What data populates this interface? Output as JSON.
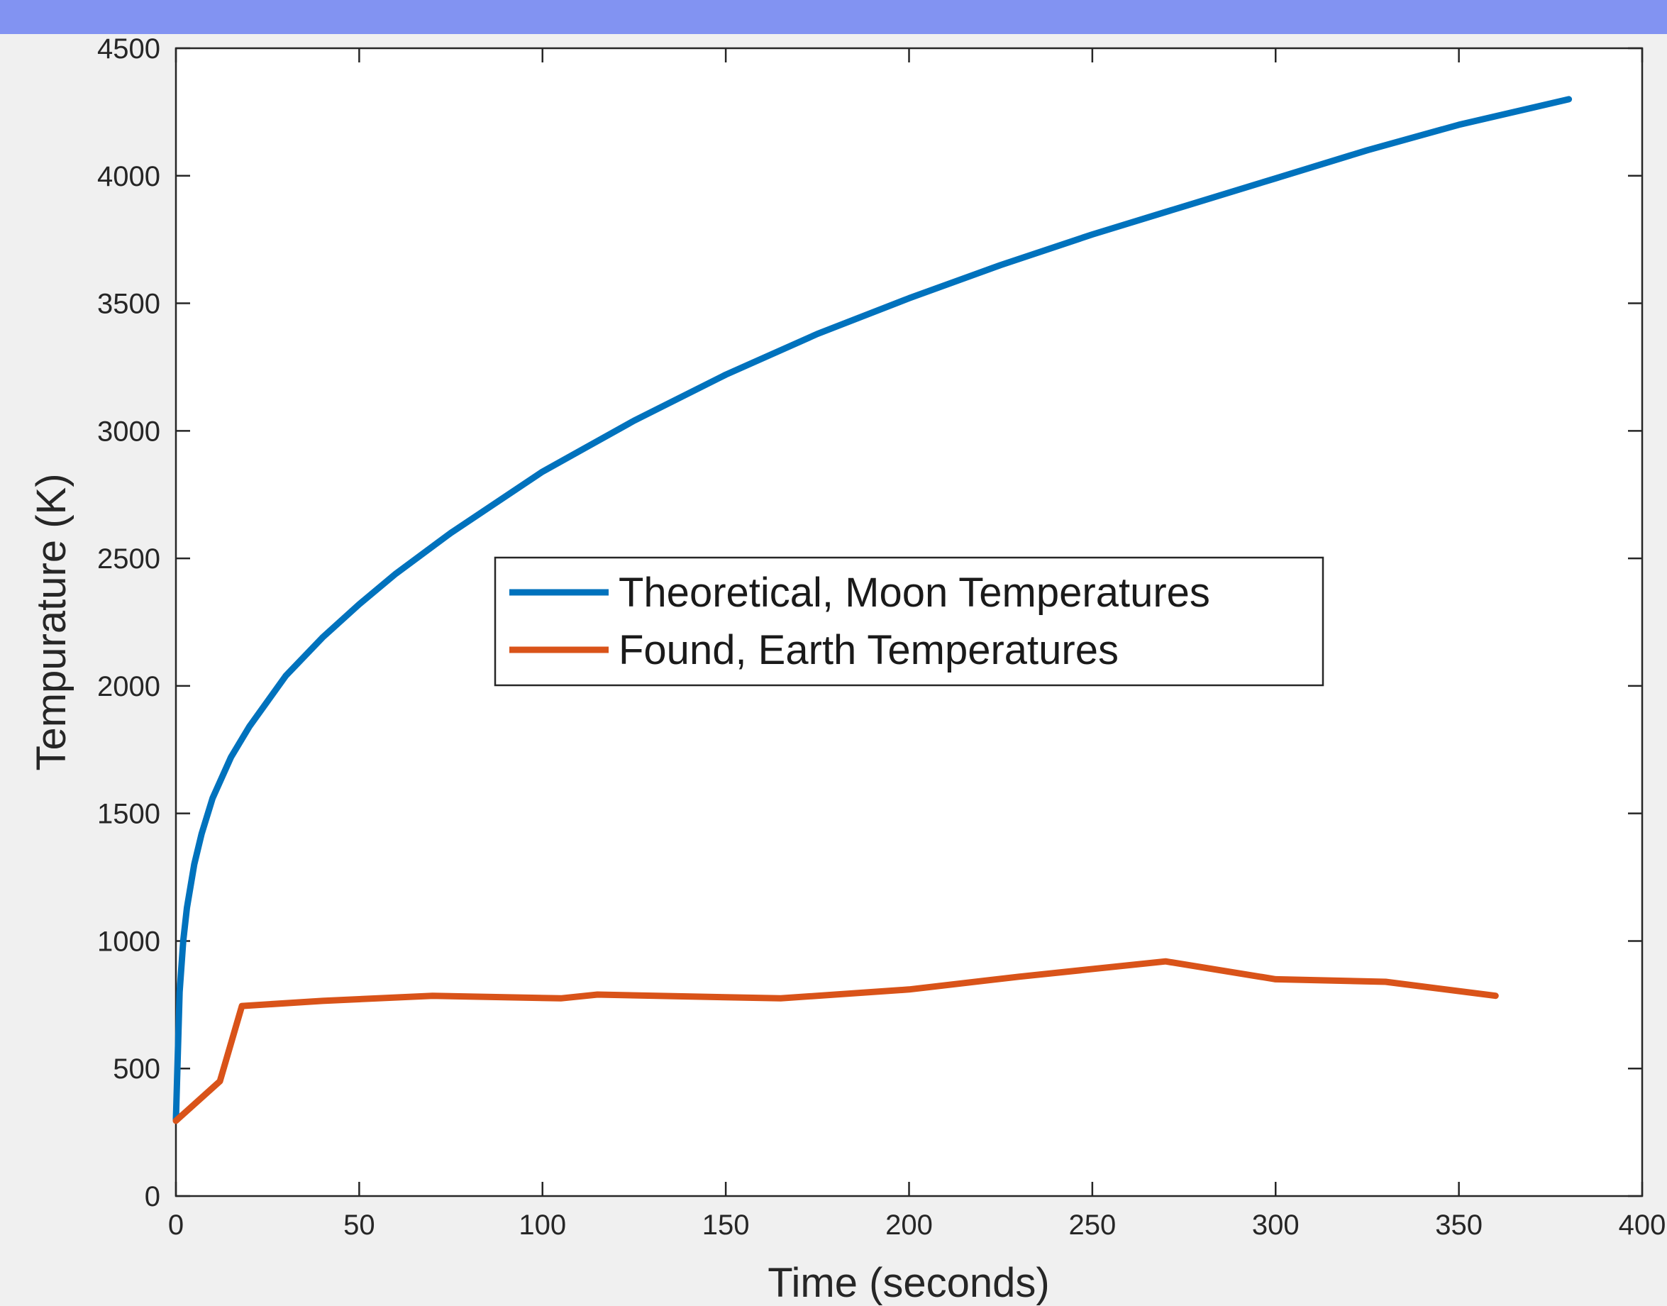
{
  "banner": {
    "color": "#8293f2"
  },
  "chart_data": {
    "type": "line",
    "title": "",
    "xlabel": "Time (seconds)",
    "ylabel": "Tempurature (K)",
    "xlim": [
      0,
      400
    ],
    "ylim": [
      0,
      4500
    ],
    "xticks": [
      0,
      50,
      100,
      150,
      200,
      250,
      300,
      350,
      400
    ],
    "yticks": [
      0,
      500,
      1000,
      1500,
      2000,
      2500,
      3000,
      3500,
      4000,
      4500
    ],
    "grid": false,
    "legend_position": "center",
    "series": [
      {
        "name": "Theoretical, Moon Temperatures",
        "color": "#0072bd",
        "x": [
          0,
          1,
          2,
          3,
          5,
          7,
          10,
          15,
          20,
          30,
          40,
          50,
          60,
          75,
          100,
          125,
          150,
          175,
          200,
          225,
          250,
          275,
          300,
          325,
          350,
          380
        ],
        "y": [
          300,
          800,
          1000,
          1130,
          1300,
          1420,
          1560,
          1720,
          1840,
          2040,
          2190,
          2320,
          2440,
          2600,
          2840,
          3040,
          3220,
          3380,
          3520,
          3650,
          3770,
          3880,
          3990,
          4100,
          4200,
          4300
        ]
      },
      {
        "name": "Found, Earth Temperatures",
        "color": "#d95319",
        "x": [
          0,
          12,
          18,
          40,
          70,
          105,
          115,
          165,
          200,
          230,
          270,
          300,
          330,
          360
        ],
        "y": [
          295,
          450,
          745,
          765,
          785,
          775,
          790,
          775,
          810,
          860,
          920,
          850,
          840,
          785
        ]
      }
    ]
  }
}
